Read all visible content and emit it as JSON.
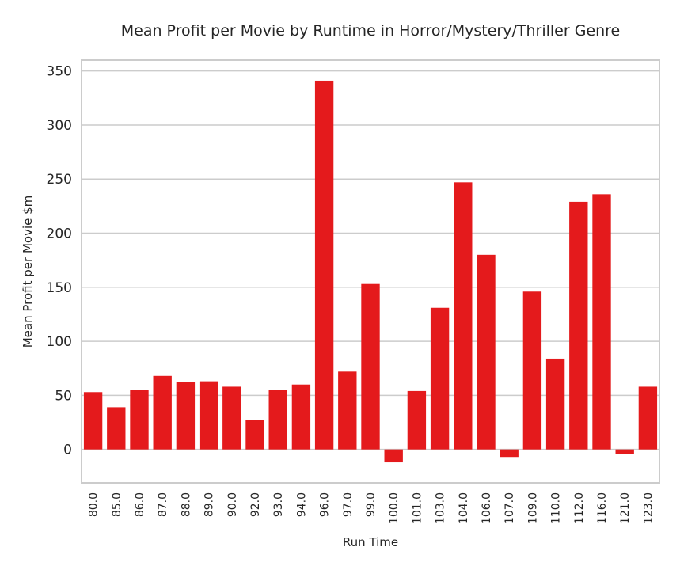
{
  "chart_data": {
    "type": "bar",
    "title": "Mean Profit per Movie by Runtime in Horror/Mystery/Thriller Genre",
    "xlabel": "Run Time",
    "ylabel": "Mean Profit per Movie $m",
    "categories": [
      "80.0",
      "85.0",
      "86.0",
      "87.0",
      "88.0",
      "89.0",
      "90.0",
      "92.0",
      "93.0",
      "94.0",
      "96.0",
      "97.0",
      "99.0",
      "100.0",
      "101.0",
      "103.0",
      "104.0",
      "106.0",
      "107.0",
      "109.0",
      "110.0",
      "112.0",
      "116.0",
      "121.0",
      "123.0"
    ],
    "values": [
      53,
      39,
      55,
      68,
      62,
      63,
      58,
      27,
      55,
      60,
      341,
      72,
      153,
      -12,
      54,
      131,
      247,
      180,
      -7,
      146,
      84,
      229,
      236,
      -4,
      58
    ],
    "ylim": [
      -31,
      360
    ],
    "yticks": [
      0,
      50,
      100,
      150,
      200,
      250,
      300,
      350
    ],
    "grid": true,
    "bar_color": "#e41a1c",
    "grid_color": "#cccccc",
    "frame_color": "#cccccc"
  }
}
